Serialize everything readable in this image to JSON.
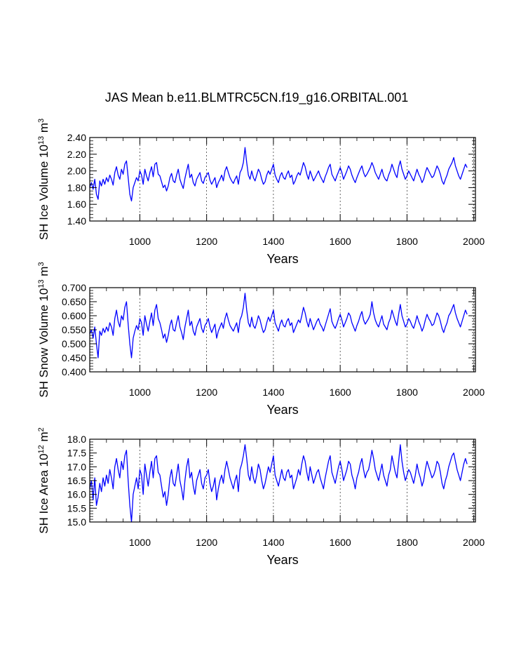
{
  "figure_title": "JAS Mean b.e11.BLMTRC5CN.f19_g16.ORBITAL.001",
  "chart_data": [
    {
      "type": "line",
      "title": "JAS Mean b.e11.BLMTRC5CN.f19_g16.ORBITAL.001",
      "ylabel": {
        "text": "SH Ice Volume 10",
        "exp": "13",
        "unit": " m",
        "unit_exp": "3"
      },
      "xlabel": "Years",
      "xlim": [
        850,
        2005
      ],
      "ylim": [
        1.4,
        2.4
      ],
      "xticks": [
        1000,
        1200,
        1400,
        1600,
        1800,
        2000
      ],
      "xtick_labels": [
        "1000",
        "1200",
        "1400",
        "1600",
        "1800",
        "2000"
      ],
      "yticks": [
        1.4,
        1.6,
        1.8,
        2.0,
        2.2,
        2.4
      ],
      "ytick_labels": [
        "1.40",
        "1.60",
        "1.80",
        "2.00",
        "2.20",
        "2.40"
      ],
      "grid": "vertical dotted lines at x ticks",
      "line_color": "#0000ff",
      "series": [
        {
          "name": "SH Ice Volume",
          "x_start": 850,
          "x_step": 5,
          "values": [
            1.8,
            1.86,
            1.78,
            1.9,
            1.72,
            1.66,
            1.88,
            1.82,
            1.9,
            1.84,
            1.92,
            1.87,
            1.95,
            1.9,
            1.83,
            1.98,
            2.05,
            1.95,
            1.9,
            2.02,
            1.96,
            2.08,
            2.12,
            1.92,
            1.72,
            1.64,
            1.8,
            1.86,
            1.92,
            1.88,
            2.0,
            1.95,
            1.84,
            2.02,
            1.94,
            1.88,
            1.98,
            2.05,
            1.93,
            2.08,
            2.1,
            1.96,
            1.94,
            1.87,
            1.8,
            1.83,
            1.76,
            1.82,
            1.92,
            1.97,
            1.88,
            1.86,
            1.95,
            2.02,
            1.9,
            1.84,
            1.79,
            1.91,
            2.0,
            2.08,
            1.92,
            1.96,
            1.86,
            1.82,
            1.9,
            1.94,
            1.98,
            1.88,
            1.85,
            1.92,
            1.95,
            1.98,
            1.89,
            1.84,
            1.88,
            1.92,
            1.8,
            1.86,
            1.9,
            1.95,
            1.88,
            2.0,
            2.05,
            1.98,
            1.92,
            1.88,
            1.85,
            1.9,
            1.94,
            1.84,
            1.98,
            2.02,
            2.1,
            2.28,
            2.1,
            1.95,
            1.9,
            2.0,
            1.92,
            1.88,
            1.95,
            2.02,
            1.98,
            1.9,
            1.84,
            1.87,
            1.95,
            2.0,
            1.96,
            2.02,
            2.08,
            1.95,
            1.9,
            1.86,
            1.94,
            1.98,
            1.92,
            1.9,
            1.96,
            2.0,
            1.92,
            1.95,
            1.84,
            1.88,
            1.94,
            1.98,
            1.95,
            2.02,
            2.1,
            2.05,
            1.96,
            1.9,
            2.0,
            1.94,
            1.88,
            1.92,
            1.96,
            2.0,
            1.94,
            1.9,
            1.86,
            1.93,
            1.98,
            2.04,
            2.08,
            1.96,
            1.92,
            1.88,
            1.94,
            1.99,
            2.04,
            1.98,
            1.9,
            1.95,
            2.0,
            2.06,
            2.02,
            1.95,
            1.9,
            1.86,
            1.92,
            1.97,
            2.02,
            2.06,
            1.98,
            1.93,
            1.96,
            2.0,
            2.04,
            2.1,
            2.05,
            1.98,
            1.94,
            1.9,
            1.96,
            2.02,
            1.94,
            1.9,
            1.88,
            1.95,
            2.0,
            2.08,
            2.02,
            1.96,
            1.92,
            2.05,
            2.12,
            2.02,
            1.96,
            1.9,
            1.94,
            2.0,
            1.96,
            1.92,
            1.88,
            1.95,
            2.02,
            1.96,
            1.92,
            1.86,
            1.9,
            1.98,
            2.04,
            2.0,
            1.96,
            1.92,
            1.94,
            2.0,
            2.06,
            2.02,
            1.96,
            1.88,
            1.84,
            1.9,
            1.95,
            2.02,
            2.06,
            2.1,
            2.16,
            2.06,
            2.0,
            1.94,
            1.9,
            1.96,
            2.02,
            2.08,
            2.04
          ]
        }
      ]
    },
    {
      "type": "line",
      "ylabel": {
        "text": "SH Snow Volume 10",
        "exp": "13",
        "unit": " m",
        "unit_exp": "3"
      },
      "xlabel": "Years",
      "xlim": [
        850,
        2005
      ],
      "ylim": [
        0.4,
        0.7
      ],
      "xticks": [
        1000,
        1200,
        1400,
        1600,
        1800,
        2000
      ],
      "xtick_labels": [
        "1000",
        "1200",
        "1400",
        "1600",
        "1800",
        "2000"
      ],
      "yticks": [
        0.4,
        0.45,
        0.5,
        0.55,
        0.6,
        0.65,
        0.7
      ],
      "ytick_labels": [
        "0.400",
        "0.450",
        "0.500",
        "0.550",
        "0.600",
        "0.650",
        "0.700"
      ],
      "grid": "vertical dotted lines at x ticks",
      "line_color": "#0000ff",
      "series": [
        {
          "name": "SH Snow Volume",
          "x_start": 850,
          "x_step": 5,
          "values": [
            0.535,
            0.55,
            0.52,
            0.56,
            0.5,
            0.45,
            0.545,
            0.53,
            0.555,
            0.54,
            0.56,
            0.545,
            0.575,
            0.56,
            0.53,
            0.59,
            0.62,
            0.58,
            0.56,
            0.6,
            0.585,
            0.63,
            0.65,
            0.57,
            0.5,
            0.45,
            0.52,
            0.545,
            0.565,
            0.55,
            0.59,
            0.575,
            0.53,
            0.6,
            0.57,
            0.545,
            0.58,
            0.61,
            0.565,
            0.62,
            0.64,
            0.59,
            0.575,
            0.55,
            0.52,
            0.535,
            0.505,
            0.53,
            0.565,
            0.585,
            0.55,
            0.545,
            0.575,
            0.6,
            0.56,
            0.54,
            0.515,
            0.56,
            0.59,
            0.62,
            0.565,
            0.58,
            0.545,
            0.53,
            0.56,
            0.575,
            0.59,
            0.555,
            0.54,
            0.565,
            0.575,
            0.59,
            0.56,
            0.54,
            0.555,
            0.57,
            0.52,
            0.545,
            0.56,
            0.575,
            0.555,
            0.59,
            0.61,
            0.585,
            0.565,
            0.555,
            0.545,
            0.56,
            0.575,
            0.54,
            0.585,
            0.6,
            0.63,
            0.68,
            0.62,
            0.575,
            0.56,
            0.595,
            0.565,
            0.555,
            0.575,
            0.6,
            0.585,
            0.56,
            0.54,
            0.55,
            0.575,
            0.595,
            0.58,
            0.6,
            0.62,
            0.575,
            0.56,
            0.545,
            0.57,
            0.585,
            0.565,
            0.56,
            0.58,
            0.59,
            0.565,
            0.575,
            0.54,
            0.555,
            0.57,
            0.585,
            0.575,
            0.6,
            0.63,
            0.61,
            0.58,
            0.56,
            0.59,
            0.57,
            0.55,
            0.565,
            0.58,
            0.59,
            0.57,
            0.56,
            0.545,
            0.565,
            0.585,
            0.605,
            0.625,
            0.58,
            0.565,
            0.555,
            0.57,
            0.59,
            0.605,
            0.585,
            0.56,
            0.575,
            0.59,
            0.61,
            0.6,
            0.575,
            0.56,
            0.545,
            0.565,
            0.58,
            0.6,
            0.615,
            0.585,
            0.57,
            0.58,
            0.59,
            0.605,
            0.65,
            0.61,
            0.585,
            0.57,
            0.56,
            0.58,
            0.6,
            0.57,
            0.56,
            0.55,
            0.575,
            0.59,
            0.62,
            0.6,
            0.58,
            0.565,
            0.605,
            0.64,
            0.6,
            0.58,
            0.56,
            0.57,
            0.59,
            0.58,
            0.565,
            0.555,
            0.575,
            0.6,
            0.58,
            0.565,
            0.545,
            0.56,
            0.585,
            0.605,
            0.59,
            0.58,
            0.565,
            0.57,
            0.59,
            0.61,
            0.6,
            0.58,
            0.555,
            0.54,
            0.56,
            0.575,
            0.6,
            0.61,
            0.625,
            0.64,
            0.61,
            0.59,
            0.575,
            0.56,
            0.58,
            0.6,
            0.62,
            0.605
          ]
        }
      ]
    },
    {
      "type": "line",
      "ylabel": {
        "text": "SH Ice Area 10",
        "exp": "12",
        "unit": " m",
        "unit_exp": "2"
      },
      "xlabel": "Years",
      "xlim": [
        850,
        2005
      ],
      "ylim": [
        15.0,
        18.0
      ],
      "xticks": [
        1000,
        1200,
        1400,
        1600,
        1800,
        2000
      ],
      "xtick_labels": [
        "1000",
        "1200",
        "1400",
        "1600",
        "1800",
        "2000"
      ],
      "yticks": [
        15.0,
        15.5,
        16.0,
        16.5,
        17.0,
        17.5,
        18.0
      ],
      "ytick_labels": [
        "15.0",
        "15.5",
        "16.0",
        "16.5",
        "17.0",
        "17.5",
        "18.0"
      ],
      "grid": "vertical dotted lines at x ticks",
      "line_color": "#0000ff",
      "series": [
        {
          "name": "SH Ice Area",
          "x_start": 850,
          "x_step": 5,
          "values": [
            16.2,
            16.5,
            15.8,
            16.6,
            15.6,
            15.9,
            16.4,
            16.1,
            16.6,
            16.3,
            16.7,
            16.4,
            16.9,
            16.6,
            16.2,
            17.0,
            17.3,
            16.9,
            16.6,
            17.2,
            16.9,
            17.4,
            17.6,
            16.5,
            15.6,
            15.0,
            16.0,
            16.3,
            16.6,
            16.2,
            16.9,
            16.7,
            16.0,
            17.1,
            16.7,
            16.3,
            16.8,
            17.2,
            16.6,
            17.3,
            17.4,
            16.8,
            16.7,
            16.3,
            15.9,
            16.1,
            15.6,
            16.0,
            16.6,
            16.9,
            16.4,
            16.3,
            16.7,
            17.1,
            16.5,
            16.2,
            15.8,
            16.5,
            17.0,
            17.3,
            16.6,
            16.8,
            16.3,
            16.0,
            16.5,
            16.7,
            16.9,
            16.4,
            16.2,
            16.6,
            16.7,
            16.9,
            16.4,
            16.1,
            16.3,
            16.6,
            15.8,
            16.2,
            16.5,
            16.7,
            16.4,
            16.9,
            17.2,
            16.9,
            16.6,
            16.4,
            16.2,
            16.5,
            16.7,
            16.1,
            16.9,
            17.1,
            17.4,
            17.8,
            17.3,
            16.7,
            16.5,
            17.0,
            16.6,
            16.4,
            16.7,
            17.1,
            16.9,
            16.5,
            16.2,
            16.4,
            16.7,
            17.0,
            16.8,
            17.1,
            17.4,
            16.7,
            16.5,
            16.3,
            16.6,
            16.9,
            16.6,
            16.5,
            16.8,
            16.9,
            16.6,
            16.7,
            16.2,
            16.4,
            16.6,
            16.9,
            16.7,
            17.1,
            17.4,
            17.2,
            16.8,
            16.5,
            17.0,
            16.7,
            16.4,
            16.6,
            16.8,
            16.9,
            16.6,
            16.4,
            16.2,
            16.6,
            16.9,
            17.2,
            17.4,
            16.8,
            16.6,
            16.4,
            16.7,
            17.0,
            17.2,
            16.9,
            16.5,
            16.7,
            16.9,
            17.2,
            17.1,
            16.7,
            16.5,
            16.2,
            16.6,
            16.8,
            17.1,
            17.3,
            16.9,
            16.6,
            16.8,
            16.9,
            17.2,
            17.6,
            17.3,
            16.9,
            16.7,
            16.5,
            16.8,
            17.1,
            16.7,
            16.5,
            16.3,
            16.7,
            16.9,
            17.4,
            17.1,
            16.8,
            16.6,
            17.2,
            17.8,
            17.2,
            16.8,
            16.5,
            16.7,
            16.9,
            16.8,
            16.6,
            16.4,
            16.7,
            17.1,
            16.8,
            16.6,
            16.3,
            16.5,
            16.9,
            17.2,
            17.0,
            16.8,
            16.6,
            16.7,
            16.9,
            17.2,
            17.1,
            16.8,
            16.4,
            16.2,
            16.5,
            16.7,
            17.0,
            17.2,
            17.4,
            17.5,
            17.2,
            16.9,
            16.7,
            16.5,
            16.8,
            17.1,
            17.3,
            17.1
          ]
        }
      ]
    }
  ]
}
